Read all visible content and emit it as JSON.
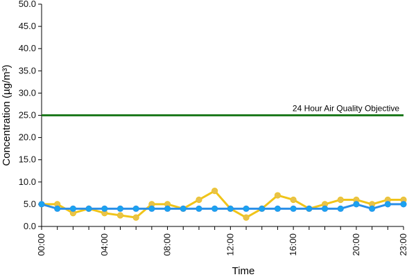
{
  "chart_data": {
    "type": "line",
    "xlabel": "Time",
    "ylabel": "Concentration (µg/m³)",
    "x": [
      "00:00",
      "01:00",
      "02:00",
      "03:00",
      "04:00",
      "05:00",
      "06:00",
      "07:00",
      "08:00",
      "09:00",
      "10:00",
      "11:00",
      "12:00",
      "13:00",
      "14:00",
      "15:00",
      "16:00",
      "17:00",
      "18:00",
      "19:00",
      "20:00",
      "21:00",
      "22:00",
      "23:00"
    ],
    "x_tick_labels": [
      "00:00",
      "04:00",
      "08:00",
      "12:00",
      "16:00",
      "20:00",
      "23:00"
    ],
    "ylim": [
      0,
      50
    ],
    "y_tick_labels": [
      "0.0",
      "5.0",
      "10.0",
      "15.0",
      "20.0",
      "25.0",
      "30.0",
      "35.0",
      "40.0",
      "45.0",
      "50.0"
    ],
    "grid": false,
    "series": [
      {
        "values": [
          5,
          5,
          3,
          4,
          3,
          2.5,
          2,
          5,
          5,
          4,
          6,
          8,
          4,
          2,
          4,
          7,
          6,
          4,
          5,
          6,
          6,
          5,
          6,
          6
        ],
        "color": "#f0c419",
        "marker_color": "#e8c24a"
      },
      {
        "values": [
          5,
          4,
          4,
          4,
          4,
          4,
          4,
          4,
          4,
          4,
          4,
          4,
          4,
          4,
          4,
          4,
          4,
          4,
          4,
          4,
          5,
          4,
          5,
          5
        ],
        "color": "#2a8fe8",
        "marker_color": "#1aa3f0"
      }
    ],
    "reference_line": {
      "value": 25,
      "label": "24 Hour Air Quality Objective",
      "color": "#1e7a1e"
    }
  }
}
